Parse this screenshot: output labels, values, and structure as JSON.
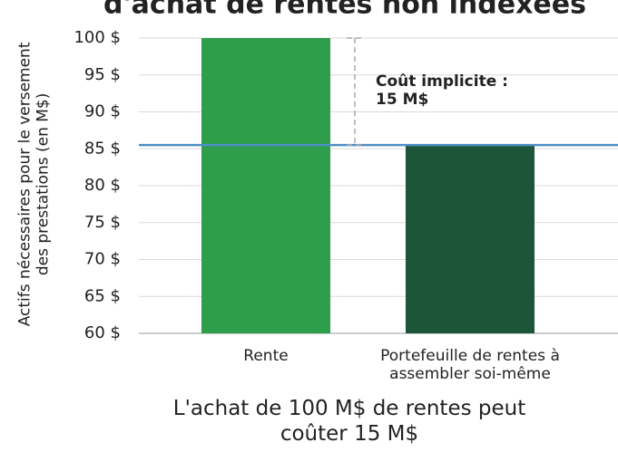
{
  "chart_data": {
    "type": "bar",
    "title": "d'achat de rentes non indexées",
    "categories": [
      "Rente",
      "Portefeuille de rentes à assembler soi-même"
    ],
    "series": [
      {
        "name": "Actifs",
        "colors": [
          "#2e9e4a",
          "#1d5538"
        ],
        "values": [
          100,
          85.5
        ]
      }
    ],
    "ylim": [
      60,
      100
    ],
    "yticks": [
      {
        "value": 60,
        "label": "60 $"
      },
      {
        "value": 65,
        "label": "65 $"
      },
      {
        "value": 70,
        "label": "70 $"
      },
      {
        "value": 75,
        "label": "75 $"
      },
      {
        "value": 80,
        "label": "80 $"
      },
      {
        "value": 85,
        "label": "85 $"
      },
      {
        "value": 90,
        "label": "90 $"
      },
      {
        "value": 95,
        "label": "95 $"
      },
      {
        "value": 100,
        "label": "100 $"
      }
    ],
    "grid": true,
    "y_label": "Actifs nécessaires pour le versement des prestations (en M$)",
    "x_label": "L'achat de 100 M$ de rentes peut coûter 15 M$",
    "reference_line": 85.5,
    "reference_color": "#4f8fc4",
    "annotation": "Coût implicite : 15 M$"
  }
}
